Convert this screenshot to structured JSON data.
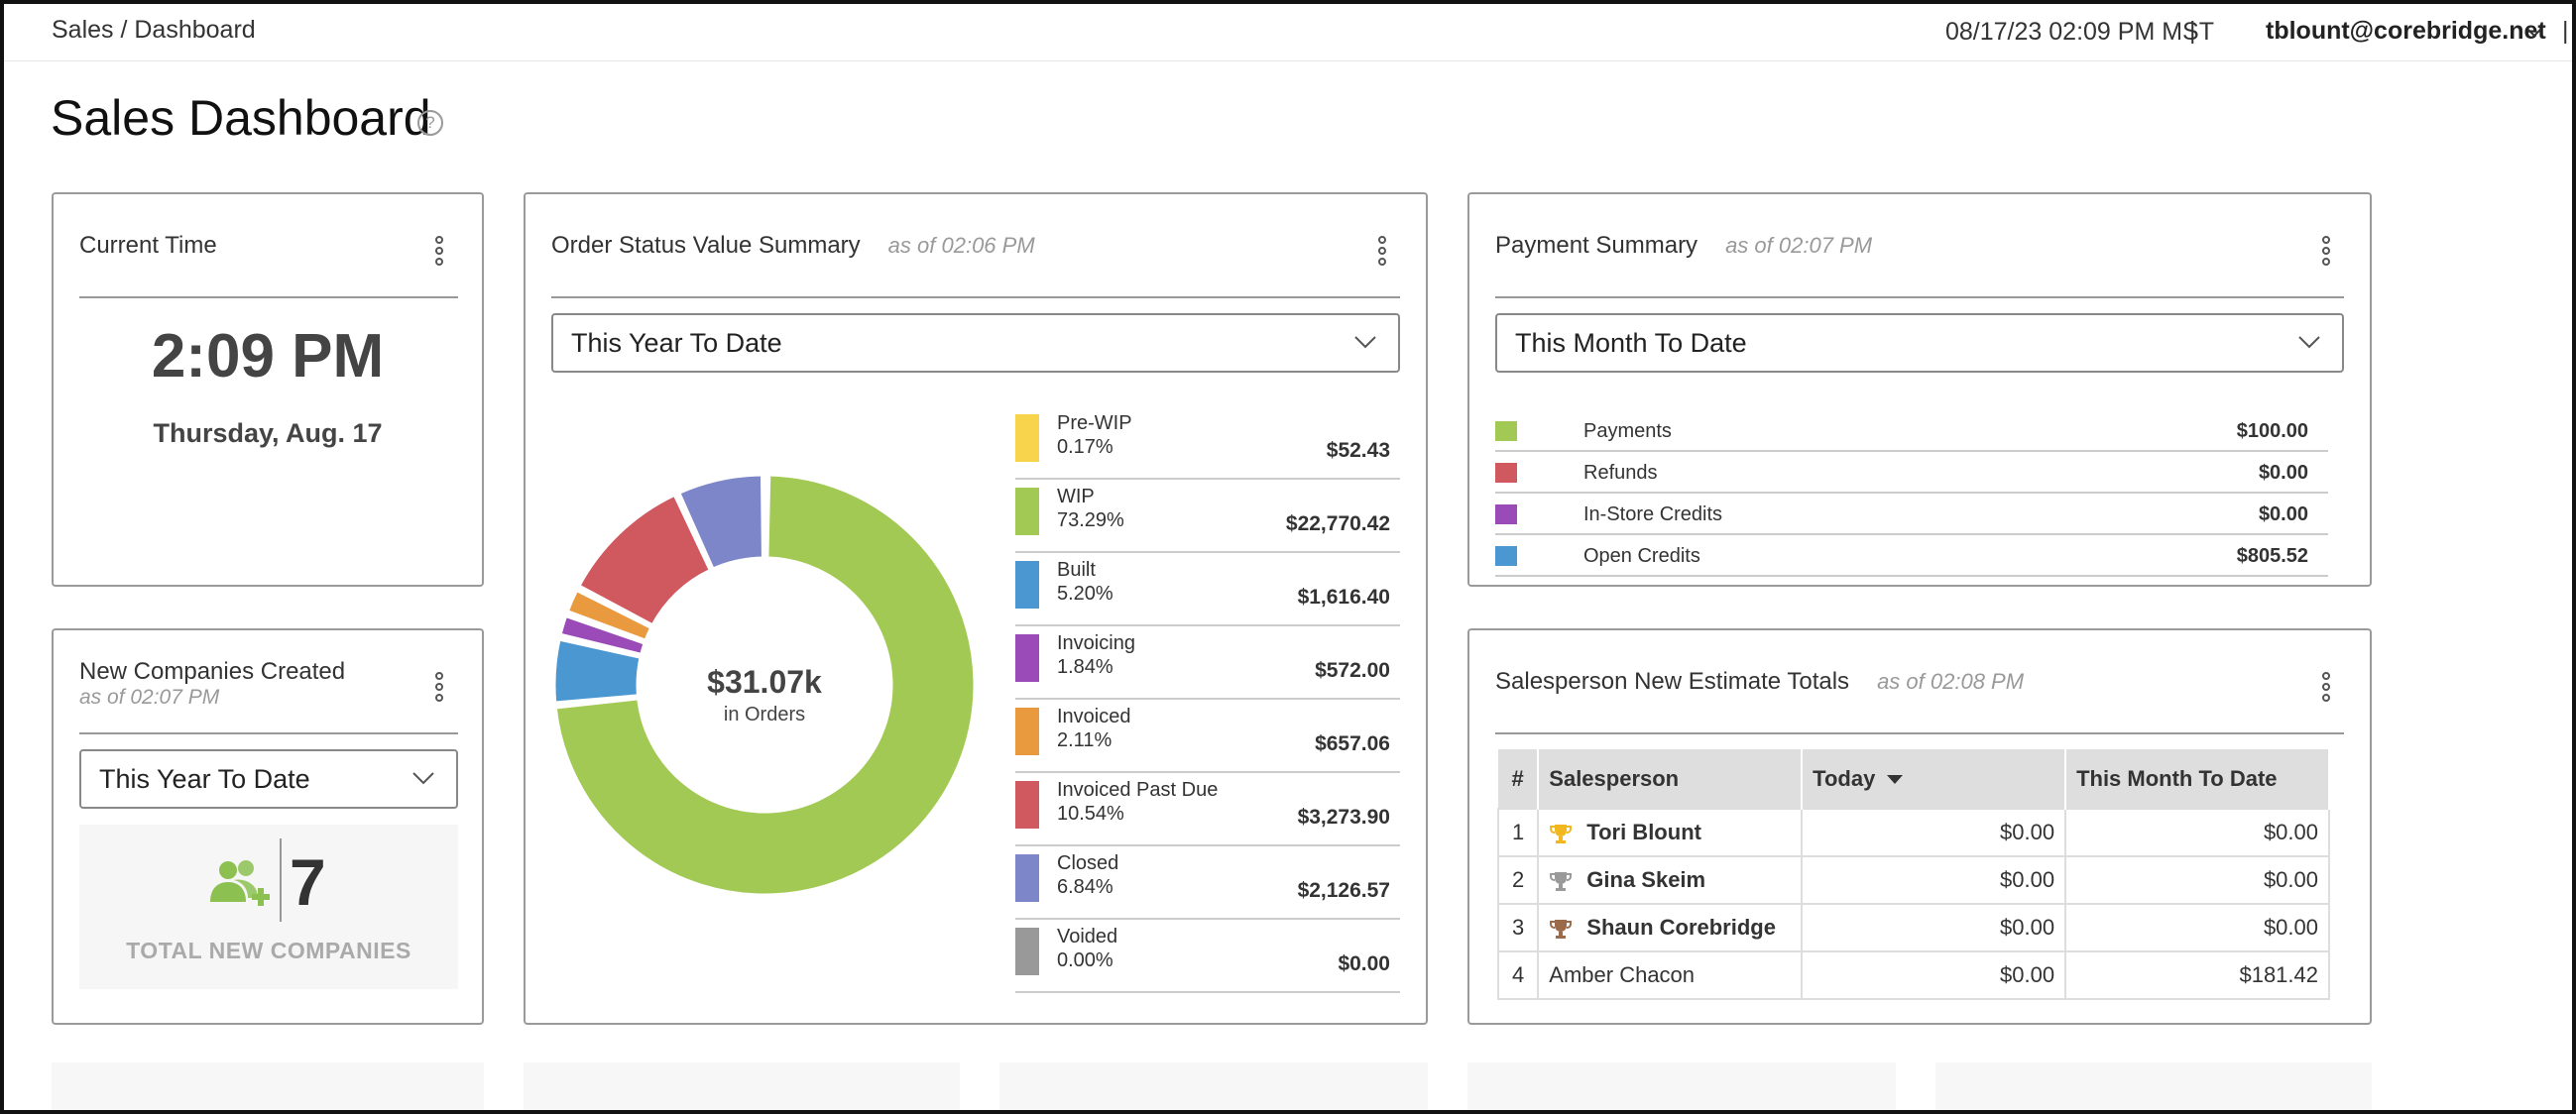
{
  "topbar": {
    "breadcrumb": "Sales / Dashboard",
    "datetime": "08/17/23 02:09 PM MST",
    "separator": "|",
    "user": "tblount@corebridge.net"
  },
  "page": {
    "title": "Sales Dashboard",
    "help_icon": "?"
  },
  "current_time": {
    "title": "Current Time",
    "time": "2:09 PM",
    "date": "Thursday, Aug. 17"
  },
  "new_companies": {
    "title": "New Companies Created",
    "asof": "as of 02:07 PM",
    "range": "This Year To Date",
    "count": "7",
    "label": "TOTAL NEW COMPANIES",
    "icon": "users-plus-icon",
    "icon_color": "#8cc152"
  },
  "order_status": {
    "title": "Order Status Value Summary",
    "asof": "as of 02:06 PM",
    "range": "This Year To Date",
    "total": "$31.07k",
    "total_label": "in Orders",
    "items": [
      {
        "name": "Pre-WIP",
        "pct": "0.17%",
        "value": "$52.43",
        "color": "#f7d44c"
      },
      {
        "name": "WIP",
        "pct": "73.29%",
        "value": "$22,770.42",
        "color": "#a3c955"
      },
      {
        "name": "Built",
        "pct": "5.20%",
        "value": "$1,616.40",
        "color": "#4a97d2"
      },
      {
        "name": "Invoicing",
        "pct": "1.84%",
        "value": "$572.00",
        "color": "#9b4bb8"
      },
      {
        "name": "Invoiced",
        "pct": "2.11%",
        "value": "$657.06",
        "color": "#e99a3f"
      },
      {
        "name": "Invoiced Past Due",
        "pct": "10.54%",
        "value": "$3,273.90",
        "color": "#d0585f"
      },
      {
        "name": "Closed",
        "pct": "6.84%",
        "value": "$2,126.57",
        "color": "#7c86c9"
      },
      {
        "name": "Voided",
        "pct": "0.00%",
        "value": "$0.00",
        "color": "#999999"
      }
    ]
  },
  "chart_data": {
    "type": "pie",
    "labels": [
      "Pre-WIP",
      "WIP",
      "Built",
      "Invoicing",
      "Invoiced",
      "Invoiced Past Due",
      "Closed",
      "Voided"
    ],
    "values": [
      52.43,
      22770.42,
      1616.4,
      572.0,
      657.06,
      3273.9,
      2126.57,
      0.0
    ],
    "percents": [
      0.17,
      73.29,
      5.2,
      1.84,
      2.11,
      10.54,
      6.84,
      0.0
    ],
    "colors": [
      "#f7d44c",
      "#a3c955",
      "#4a97d2",
      "#9b4bb8",
      "#e99a3f",
      "#d0585f",
      "#7c86c9",
      "#999999"
    ],
    "donut": true,
    "center_text": "$31.07k",
    "center_subtext": "in Orders"
  },
  "payment_summary": {
    "title": "Payment Summary",
    "asof": "as of 02:07 PM",
    "range": "This Month To Date",
    "rows": [
      {
        "name": "Payments",
        "value": "$100.00",
        "color": "#a3c955"
      },
      {
        "name": "Refunds",
        "value": "$0.00",
        "color": "#d0585f"
      },
      {
        "name": "In-Store Credits",
        "value": "$0.00",
        "color": "#9b4bb8"
      },
      {
        "name": "Open Credits",
        "value": "$805.52",
        "color": "#4a97d2"
      }
    ]
  },
  "salesperson": {
    "title": "Salesperson New Estimate Totals",
    "asof": "as of 02:08 PM",
    "columns": [
      "#",
      "Salesperson",
      "Today",
      "This Month To Date"
    ],
    "rows": [
      {
        "rank": "1",
        "name": "Tori Blount",
        "today": "$0.00",
        "mtd": "$0.00",
        "trophy": "gold-trophy-icon"
      },
      {
        "rank": "2",
        "name": "Gina Skeim",
        "today": "$0.00",
        "mtd": "$0.00",
        "trophy": "silver-trophy-icon"
      },
      {
        "rank": "3",
        "name": "Shaun Corebridge",
        "today": "$0.00",
        "mtd": "$0.00",
        "trophy": "bronze-trophy-icon"
      },
      {
        "rank": "4",
        "name": "Amber Chacon",
        "today": "$0.00",
        "mtd": "$181.42",
        "trophy": ""
      }
    ]
  }
}
